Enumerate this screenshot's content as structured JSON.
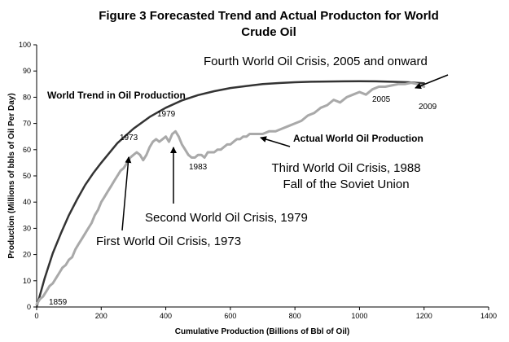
{
  "chart_data": {
    "type": "line",
    "title_line1": "Figure 3    Forecasted Trend and Actual Producton for World",
    "title_line2": "Crude Oil",
    "xlabel": "Cumulative Production (Billions of Bbl of Oil)",
    "ylabel": "Production (Millions of bbls of Oil Per Day)",
    "xlim": [
      0,
      1400
    ],
    "ylim": [
      0,
      100
    ],
    "x_ticks": [
      0,
      200,
      400,
      600,
      800,
      1000,
      1200,
      1400
    ],
    "y_ticks": [
      0,
      10,
      20,
      30,
      40,
      50,
      60,
      70,
      80,
      90,
      100
    ],
    "grid": false,
    "series": [
      {
        "name": "World Trend in Oil Production",
        "color": "#333333",
        "x": [
          0,
          25,
          50,
          75,
          100,
          125,
          150,
          175,
          200,
          250,
          300,
          350,
          400,
          450,
          500,
          550,
          600,
          650,
          700,
          750,
          800,
          850,
          900,
          950,
          1000,
          1050,
          1100,
          1150,
          1200
        ],
        "y": [
          0,
          11,
          20.5,
          28,
          35,
          41,
          46.5,
          51,
          55,
          62.5,
          68,
          72.5,
          76,
          78.8,
          80.8,
          82.3,
          83.5,
          84.3,
          85,
          85.4,
          85.7,
          85.9,
          86,
          86.05,
          86.1,
          86.05,
          85.9,
          85.7,
          85.3
        ]
      },
      {
        "name": "Actual World Oil Production",
        "color": "#a9a9a9",
        "x": [
          0,
          10,
          20,
          30,
          40,
          50,
          60,
          70,
          80,
          90,
          100,
          110,
          120,
          130,
          140,
          150,
          160,
          170,
          180,
          190,
          200,
          210,
          220,
          230,
          240,
          250,
          260,
          270,
          280,
          290,
          300,
          310,
          320,
          330,
          340,
          350,
          360,
          370,
          380,
          390,
          400,
          410,
          420,
          430,
          440,
          450,
          460,
          470,
          480,
          490,
          500,
          510,
          520,
          530,
          540,
          550,
          560,
          570,
          580,
          590,
          600,
          610,
          620,
          630,
          640,
          650,
          660,
          670,
          680,
          690,
          700,
          720,
          740,
          760,
          780,
          800,
          820,
          840,
          860,
          880,
          900,
          920,
          940,
          960,
          980,
          1000,
          1020,
          1040,
          1060,
          1080,
          1100,
          1120,
          1140,
          1160,
          1180,
          1200
        ],
        "y": [
          1,
          3,
          4,
          6,
          8,
          9,
          11,
          13,
          15,
          16,
          18,
          19,
          22,
          24,
          26,
          28,
          30,
          32,
          35,
          37,
          40,
          42,
          44,
          46,
          48,
          50,
          52,
          53,
          55,
          57,
          58,
          59,
          58,
          56,
          58,
          61,
          63,
          64,
          63,
          64,
          65,
          63,
          66,
          67,
          65,
          62,
          60,
          58,
          57,
          57,
          58,
          58,
          57,
          59,
          59,
          59,
          60,
          60,
          61,
          62,
          62,
          63,
          64,
          64,
          65,
          65,
          66,
          66,
          66,
          66,
          66,
          67,
          67,
          68,
          69,
          70,
          71,
          73,
          74,
          76,
          77,
          79,
          78,
          80,
          81,
          82,
          81,
          83,
          84,
          84,
          84.5,
          85,
          85,
          85.5,
          85,
          84
        ]
      }
    ],
    "annotations": {
      "world_trend_label": "World Trend in Oil Production",
      "actual_label": "Actual World Oil Production",
      "fourth_crisis": "Fourth World Oil Crisis, 2005 and onward",
      "third_crisis_line1": "Third World Oil Crisis, 1988",
      "third_crisis_line2": "Fall of the Soviet Union",
      "second_crisis": "Second World Oil Crisis, 1979",
      "first_crisis": "First World Oil Crisis, 1973",
      "year_1859": "1859",
      "year_1973": "1973",
      "year_1979": "1979",
      "year_1983": "1983",
      "year_2005": "2005",
      "year_2009": "2009"
    }
  }
}
